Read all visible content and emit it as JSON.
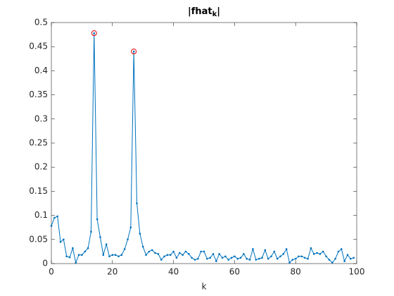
{
  "chart_data": {
    "type": "line",
    "title": [
      "|fhat",
      "k",
      "|"
    ],
    "xlabel": "k",
    "x": [
      0,
      1,
      2,
      3,
      4,
      5,
      6,
      7,
      8,
      9,
      10,
      11,
      12,
      13,
      14,
      15,
      16,
      17,
      18,
      19,
      20,
      21,
      22,
      23,
      24,
      25,
      26,
      27,
      28,
      29,
      30,
      31,
      32,
      33,
      34,
      35,
      36,
      37,
      38,
      39,
      40,
      41,
      42,
      43,
      44,
      45,
      46,
      47,
      48,
      49,
      50,
      51,
      52,
      53,
      54,
      55,
      56,
      57,
      58,
      59,
      60,
      61,
      62,
      63,
      64,
      65,
      66,
      67,
      68,
      69,
      70,
      71,
      72,
      73,
      74,
      75,
      76,
      77,
      78,
      79,
      80,
      81,
      82,
      83,
      84,
      85,
      86,
      87,
      88,
      89,
      90,
      91,
      92,
      93,
      94,
      95,
      96,
      97,
      98,
      99
    ],
    "series": [
      {
        "name": "fhat",
        "color": "#0072bd",
        "values": [
          0.078,
          0.095,
          0.098,
          0.045,
          0.05,
          0.015,
          0.013,
          0.032,
          0.002,
          0.018,
          0.018,
          0.025,
          0.032,
          0.066,
          0.478,
          0.092,
          0.055,
          0.018,
          0.04,
          0.015,
          0.018,
          0.018,
          0.015,
          0.018,
          0.03,
          0.05,
          0.075,
          0.44,
          0.125,
          0.062,
          0.035,
          0.018,
          0.025,
          0.028,
          0.022,
          0.02,
          0.008,
          0.015,
          0.018,
          0.018,
          0.025,
          0.012,
          0.022,
          0.018,
          0.025,
          0.02,
          0.012,
          0.008,
          0.01,
          0.025,
          0.025,
          0.01,
          0.012,
          0.02,
          0.005,
          0.02,
          0.012,
          0.015,
          0.008,
          0.012,
          0.015,
          0.01,
          0.012,
          0.02,
          0.01,
          0.008,
          0.03,
          0.008,
          0.01,
          0.012,
          0.028,
          0.01,
          0.015,
          0.025,
          0.01,
          0.015,
          0.02,
          0.03,
          0.002,
          0.008,
          0.01,
          0.015,
          0.015,
          0.012,
          0.01,
          0.032,
          0.02,
          0.022,
          0.02,
          0.025,
          0.015,
          0.008,
          0.002,
          0.01,
          0.025,
          0.03,
          0.005,
          0.018,
          0.01,
          0.012
        ]
      }
    ],
    "peaks": {
      "color": "#e00000",
      "x": [
        14,
        27
      ],
      "values": [
        0.478,
        0.44
      ]
    },
    "xlim": [
      0,
      100
    ],
    "xticks": [
      0,
      20,
      40,
      60,
      80,
      100
    ],
    "ylim": [
      0,
      0.5
    ],
    "yticks": [
      0,
      0.05,
      0.1,
      0.15,
      0.2,
      0.25,
      0.3,
      0.35,
      0.4,
      0.45,
      0.5
    ],
    "grid": false
  }
}
